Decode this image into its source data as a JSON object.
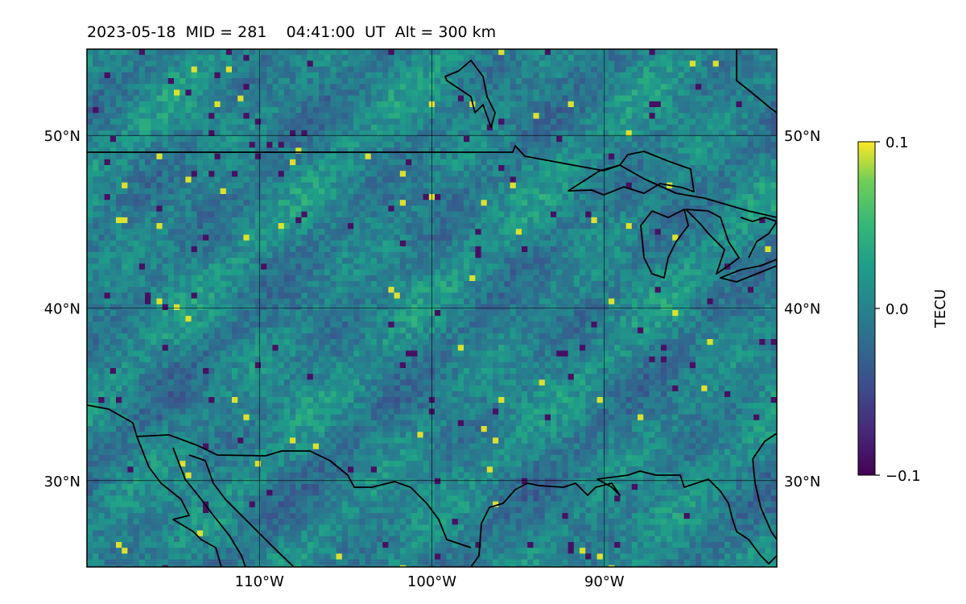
{
  "title": {
    "date": "2023-05-18",
    "mid": "MID = 281",
    "time": "04:41:00  UT",
    "alt": "Alt = 300 km"
  },
  "map": {
    "extent": {
      "lon": [
        -120,
        -80
      ],
      "lat": [
        25,
        55
      ]
    },
    "lon_ticks": [
      {
        "value": -110,
        "label": "110°W"
      },
      {
        "value": -100,
        "label": "100°W"
      },
      {
        "value": -90,
        "label": "90°W"
      }
    ],
    "lat_ticks": [
      {
        "value": 50,
        "label": "50°N"
      },
      {
        "value": 40,
        "label": "40°N"
      },
      {
        "value": 30,
        "label": "30°N"
      }
    ],
    "grid": true
  },
  "colorbar": {
    "label": "TECU",
    "colormap": "viridis",
    "range": [
      -0.1,
      0.1
    ],
    "ticks": [
      {
        "value": 0.1,
        "label": "0.1"
      },
      {
        "value": 0.0,
        "label": "0.0"
      },
      {
        "value": -0.1,
        "label": "−0.1"
      }
    ]
  },
  "colors": {
    "background_field": "#2a8a8a",
    "coastline": "#000000",
    "grid": "#000000"
  }
}
